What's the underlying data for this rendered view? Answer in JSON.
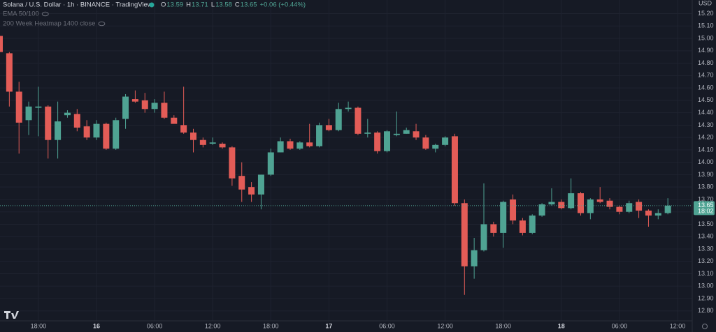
{
  "chart_data": {
    "type": "candlestick",
    "title": "Solana / U.S. Dollar · 1h · BINANCE · TradingView",
    "legend_ohlc": [
      {
        "key": "O",
        "value": "13.59"
      },
      {
        "key": "H",
        "value": "13.71"
      },
      {
        "key": "L",
        "value": "13.58"
      },
      {
        "key": "C",
        "value": "13.65"
      }
    ],
    "change": "+0.06 (+0.44%)",
    "indicators": [
      "EMA 50/100",
      "200 Week Heatmap 1400 close"
    ],
    "currency": "USD",
    "last_price": 13.65,
    "countdown": "18:02",
    "up_color": "#4fa393",
    "down_color": "#e35c57",
    "categories": [
      null,
      null,
      null,
      null,
      "18:00",
      null,
      null,
      null,
      null,
      null,
      "16",
      null,
      null,
      null,
      null,
      null,
      "06:00",
      null,
      null,
      null,
      null,
      null,
      "12:00",
      null,
      null,
      null,
      null,
      null,
      "18:00",
      null,
      null,
      null,
      null,
      null,
      "17",
      null,
      null,
      null,
      null,
      null,
      "06:00",
      null,
      null,
      null,
      null,
      null,
      "12:00",
      null,
      null,
      null,
      null,
      null,
      "18:00",
      null,
      null,
      null,
      null,
      null,
      "18",
      null,
      null,
      null,
      null,
      null,
      "06:00",
      null,
      null,
      null,
      null,
      null,
      "12:00"
    ],
    "open": [
      15.02,
      14.88,
      14.57,
      14.34,
      14.44,
      14.45,
      14.18,
      14.38,
      14.39,
      14.29,
      14.2,
      14.31,
      14.11,
      14.35,
      14.51,
      14.5,
      14.43,
      14.48,
      14.36,
      14.3,
      14.24,
      14.18,
      14.15,
      14.15,
      14.12,
      13.89,
      13.8,
      13.74,
      13.9,
      14.08,
      14.17,
      14.11,
      14.16,
      14.13,
      14.3,
      14.26,
      14.43,
      14.44,
      14.23,
      14.24,
      14.09,
      14.22,
      14.23,
      14.25,
      14.2,
      14.11,
      14.14,
      14.21,
      13.67,
      13.16,
      13.29,
      13.5,
      13.43,
      13.7,
      13.53,
      13.43,
      13.57,
      13.66,
      13.68,
      13.63,
      13.75,
      13.59,
      13.7,
      13.69,
      13.64,
      13.6,
      13.68,
      13.61,
      13.57,
      13.59,
      null
    ],
    "high": [
      15.05,
      14.89,
      14.65,
      14.49,
      14.61,
      14.46,
      14.49,
      14.42,
      14.43,
      14.34,
      14.34,
      14.32,
      14.36,
      14.55,
      14.58,
      14.56,
      14.51,
      14.57,
      14.38,
      14.61,
      14.27,
      14.2,
      14.2,
      14.16,
      14.13,
      14.0,
      13.84,
      13.9,
      14.11,
      14.2,
      14.19,
      14.17,
      14.31,
      14.32,
      14.35,
      14.48,
      14.49,
      14.45,
      14.35,
      14.25,
      14.26,
      14.41,
      14.28,
      14.31,
      14.22,
      14.15,
      14.21,
      14.23,
      13.7,
      13.39,
      13.83,
      13.52,
      13.69,
      13.74,
      13.55,
      13.58,
      13.67,
      13.79,
      13.7,
      13.87,
      13.76,
      13.71,
      13.8,
      13.71,
      13.65,
      13.69,
      13.7,
      13.62,
      13.62,
      13.71,
      null
    ],
    "low": [
      14.88,
      14.45,
      14.07,
      14.22,
      14.21,
      14.03,
      14.03,
      14.36,
      14.25,
      14.18,
      14.18,
      14.1,
      14.1,
      14.27,
      14.48,
      14.4,
      14.4,
      14.35,
      14.33,
      14.23,
      14.08,
      14.12,
      14.14,
      14.11,
      13.81,
      13.68,
      13.68,
      13.62,
      13.89,
      14.08,
      14.1,
      14.1,
      14.12,
      14.12,
      14.25,
      14.25,
      14.41,
      14.22,
      14.2,
      14.07,
      14.08,
      14.21,
      14.23,
      14.18,
      14.1,
      14.08,
      14.13,
      13.65,
      12.93,
      13.06,
      13.28,
      13.4,
      13.31,
      13.5,
      13.41,
      13.42,
      13.56,
      13.65,
      13.62,
      13.62,
      13.57,
      13.54,
      13.67,
      13.62,
      13.58,
      13.59,
      13.55,
      13.48,
      13.54,
      13.58,
      null
    ],
    "close": [
      14.89,
      14.57,
      14.32,
      14.45,
      14.45,
      14.18,
      14.33,
      14.4,
      14.28,
      14.2,
      14.31,
      14.11,
      14.34,
      14.53,
      14.49,
      14.43,
      14.48,
      14.36,
      14.31,
      14.24,
      14.18,
      14.14,
      14.16,
      14.12,
      13.87,
      13.78,
      13.74,
      13.9,
      14.08,
      14.17,
      14.11,
      14.16,
      14.13,
      14.3,
      14.26,
      14.43,
      14.44,
      14.23,
      14.24,
      14.09,
      14.25,
      14.23,
      14.26,
      14.2,
      14.11,
      14.14,
      14.2,
      13.67,
      13.16,
      13.29,
      13.5,
      13.43,
      13.68,
      13.53,
      13.43,
      13.57,
      13.66,
      13.68,
      13.63,
      13.75,
      13.59,
      13.7,
      13.68,
      13.64,
      13.6,
      13.67,
      13.61,
      13.57,
      13.59,
      13.65,
      null
    ],
    "ylim": [
      12.72,
      15.31
    ],
    "yticks": [
      {
        "value": 12.8,
        "label": "12.80"
      },
      {
        "value": 12.9,
        "label": "12.90"
      },
      {
        "value": 13,
        "label": "13.00"
      },
      {
        "value": 13.1,
        "label": "13.10"
      },
      {
        "value": 13.2,
        "label": "13.20"
      },
      {
        "value": 13.3,
        "label": "13.30"
      },
      {
        "value": 13.4,
        "label": "13.40"
      },
      {
        "value": 13.5,
        "label": "13.50"
      },
      {
        "value": 13.6,
        "label": "13.60"
      },
      {
        "value": 13.7,
        "label": "13.70"
      },
      {
        "value": 13.8,
        "label": "13.80"
      },
      {
        "value": 13.9,
        "label": "13.90"
      },
      {
        "value": 14,
        "label": "14.00"
      },
      {
        "value": 14.1,
        "label": "14.10"
      },
      {
        "value": 14.2,
        "label": "14.20"
      },
      {
        "value": 14.3,
        "label": "14.30"
      },
      {
        "value": 14.4,
        "label": "14.40"
      },
      {
        "value": 14.5,
        "label": "14.50"
      },
      {
        "value": 14.6,
        "label": "14.60"
      },
      {
        "value": 14.7,
        "label": "14.70"
      },
      {
        "value": 14.8,
        "label": "14.80"
      },
      {
        "value": 14.9,
        "label": "14.90"
      },
      {
        "value": 15,
        "label": "15.00"
      },
      {
        "value": 15.1,
        "label": "15.10"
      },
      {
        "value": 15.2,
        "label": "15.20"
      }
    ],
    "grid": true
  }
}
